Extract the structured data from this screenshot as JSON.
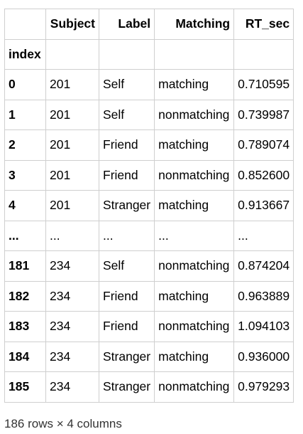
{
  "table": {
    "columns": [
      "Subject",
      "Label",
      "Matching",
      "RT_sec"
    ],
    "index_name": "index",
    "rows": [
      {
        "index": "0",
        "subject": "201",
        "label": "Self",
        "matching": "matching",
        "rt": "0.710595"
      },
      {
        "index": "1",
        "subject": "201",
        "label": "Self",
        "matching": "nonmatching",
        "rt": "0.739987"
      },
      {
        "index": "2",
        "subject": "201",
        "label": "Friend",
        "matching": "matching",
        "rt": "0.789074"
      },
      {
        "index": "3",
        "subject": "201",
        "label": "Friend",
        "matching": "nonmatching",
        "rt": "0.852600"
      },
      {
        "index": "4",
        "subject": "201",
        "label": "Stranger",
        "matching": "matching",
        "rt": "0.913667"
      },
      {
        "index": "...",
        "subject": "...",
        "label": "...",
        "matching": "...",
        "rt": "..."
      },
      {
        "index": "181",
        "subject": "234",
        "label": "Self",
        "matching": "nonmatching",
        "rt": "0.874204"
      },
      {
        "index": "182",
        "subject": "234",
        "label": "Friend",
        "matching": "matching",
        "rt": "0.963889"
      },
      {
        "index": "183",
        "subject": "234",
        "label": "Friend",
        "matching": "nonmatching",
        "rt": "1.094103"
      },
      {
        "index": "184",
        "subject": "234",
        "label": "Stranger",
        "matching": "matching",
        "rt": "0.936000"
      },
      {
        "index": "185",
        "subject": "234",
        "label": "Stranger",
        "matching": "nonmatching",
        "rt": "0.979293"
      }
    ]
  },
  "shape_text": "186 rows × 4 columns",
  "colors": {
    "border": "#cfcfcf",
    "text": "#000000",
    "caption": "#333333"
  }
}
